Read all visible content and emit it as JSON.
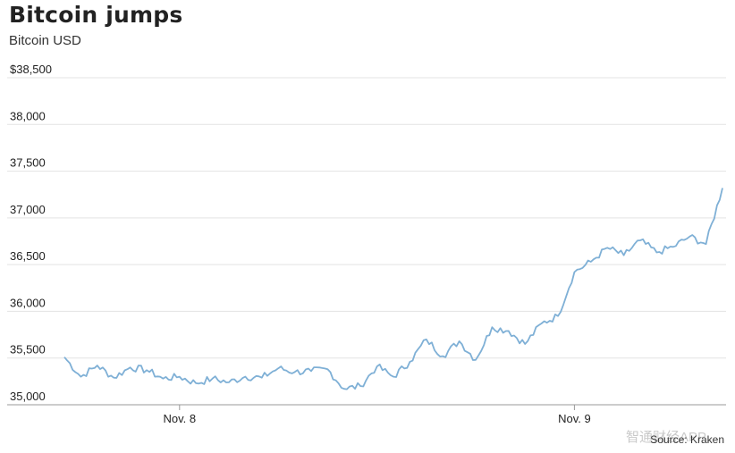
{
  "chart_data": {
    "type": "line",
    "title": "Bitcoin jumps",
    "subtitle": "Bitcoin USD",
    "source": "Source: Kraken",
    "watermark": "智通财经APP",
    "ylim": [
      35000,
      38500
    ],
    "y_ticks": [
      {
        "value": 35000,
        "label": "35,000"
      },
      {
        "value": 35500,
        "label": "35,500"
      },
      {
        "value": 36000,
        "label": "36,000"
      },
      {
        "value": 36500,
        "label": "36,500"
      },
      {
        "value": 37000,
        "label": "37,000"
      },
      {
        "value": 37500,
        "label": "37,500"
      },
      {
        "value": 38000,
        "label": "38,000"
      },
      {
        "value": 38500,
        "label": "$38,500"
      }
    ],
    "x_ticks": [
      {
        "value": "Nov. 8",
        "label": "Nov. 8"
      },
      {
        "value": "Nov. 9",
        "label": "Nov. 9"
      }
    ],
    "series": [
      {
        "color": "#7fb0d6",
        "x": [
          "Nov. 7 17:00",
          "Nov. 7 18:00",
          "Nov. 7 19:00",
          "Nov. 7 20:00",
          "Nov. 7 21:00",
          "Nov. 7 22:00",
          "Nov. 7 23:00",
          "Nov. 8 00:00",
          "Nov. 8 01:00",
          "Nov. 8 02:00",
          "Nov. 8 03:00",
          "Nov. 8 04:00",
          "Nov. 8 05:00",
          "Nov. 8 06:00",
          "Nov. 8 07:00",
          "Nov. 8 08:00",
          "Nov. 8 09:00",
          "Nov. 8 10:00",
          "Nov. 8 11:00",
          "Nov. 8 12:00",
          "Nov. 8 13:00",
          "Nov. 8 14:00",
          "Nov. 8 15:00",
          "Nov. 8 16:00",
          "Nov. 8 17:00",
          "Nov. 8 18:00",
          "Nov. 8 19:00",
          "Nov. 8 20:00",
          "Nov. 8 21:00",
          "Nov. 8 22:00",
          "Nov. 8 23:00",
          "Nov. 9 00:00",
          "Nov. 9 01:00",
          "Nov. 9 02:00",
          "Nov. 9 03:00",
          "Nov. 9 04:00",
          "Nov. 9 05:00",
          "Nov. 9 06:00",
          "Nov. 9 07:00",
          "Nov. 9 08:00",
          "Nov. 9 09:00"
        ],
        "values": [
          35510,
          35300,
          35420,
          35290,
          35400,
          35370,
          35280,
          35300,
          35230,
          35280,
          35240,
          35300,
          35290,
          35390,
          35350,
          35360,
          35380,
          35170,
          35200,
          35410,
          35300,
          35460,
          35700,
          35520,
          35680,
          35480,
          35830,
          35790,
          35650,
          35870,
          35950,
          36420,
          36530,
          36680,
          36600,
          36760,
          36630,
          36690,
          36800,
          36720,
          37320
        ]
      }
    ]
  }
}
